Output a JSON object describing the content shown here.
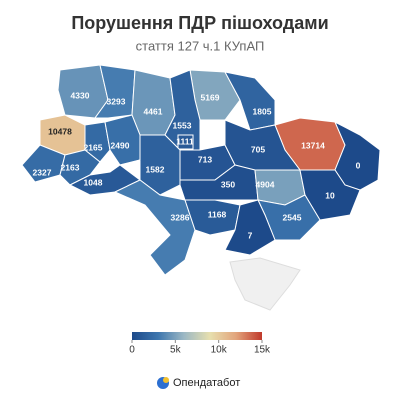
{
  "chart_data": {
    "type": "choropleth",
    "title": "Порушення ПДР пішоходами",
    "subtitle": "стаття 127 ч.1 КУпАП",
    "values": [
      4330,
      3293,
      4461,
      5169,
      1553,
      1805,
      10478,
      2165,
      2490,
      1111,
      13714,
      2327,
      2163,
      1582,
      713,
      705,
      0,
      1048,
      350,
      4904,
      10,
      3286,
      1168,
      2545,
      7
    ],
    "colors": [
      "#1d4a8a",
      "#3d76ae",
      "#9cb8c4",
      "#e7dfae",
      "#e2a47c",
      "#c0392b"
    ],
    "range": [
      0,
      15000
    ],
    "ticks": [
      0,
      {
        "value": 5000,
        "label": "5k"
      },
      {
        "value": 10000,
        "label": "10k"
      },
      {
        "value": 15000,
        "label": "15k"
      }
    ],
    "brand": "Опендатабот"
  }
}
